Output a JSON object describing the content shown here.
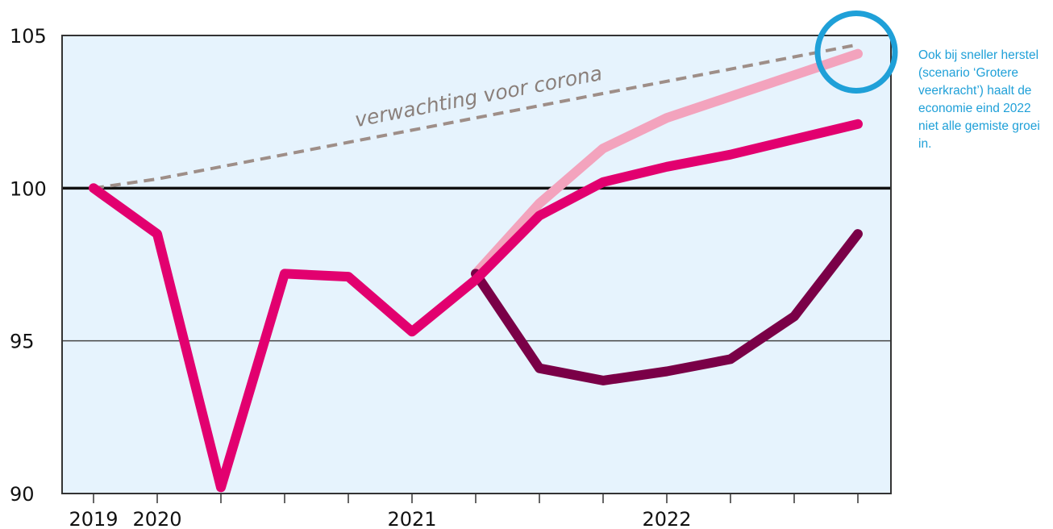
{
  "chart_data": {
    "type": "line",
    "title": "",
    "xlabel": "",
    "ylabel": "",
    "ylim": [
      90,
      105
    ],
    "yticks": [
      90,
      95,
      100,
      105
    ],
    "x_periods": [
      "2019Q4",
      "2020Q1",
      "2020Q2",
      "2020Q3",
      "2020Q4",
      "2021Q1",
      "2021Q2",
      "2021Q3",
      "2021Q4",
      "2022Q1",
      "2022Q2",
      "2022Q3",
      "2022Q4"
    ],
    "x_tick_labels": [
      {
        "period": "2019Q4",
        "label": "2019"
      },
      {
        "period": "2020Q1",
        "label": "2020"
      },
      {
        "period": "2021Q1",
        "label": "2021"
      },
      {
        "period": "2022Q1",
        "label": "2022"
      }
    ],
    "reference_line": {
      "y": 100,
      "color": "#111111"
    },
    "grid": {
      "horizontal": [
        95
      ],
      "vertical": false
    },
    "series": [
      {
        "name": "verwachting voor corona",
        "style": "dashed",
        "color": "#9e8e88",
        "values": [
          100,
          100.3,
          100.7,
          101.1,
          101.5,
          101.9,
          102.3,
          102.7,
          103.1,
          103.5,
          103.9,
          104.3,
          104.7
        ]
      },
      {
        "name": "",
        "style": "solid",
        "color": "#f3a3bd",
        "values": [
          null,
          null,
          null,
          null,
          null,
          null,
          97.2,
          99.5,
          101.3,
          102.3,
          103,
          103.7,
          104.4
        ]
      },
      {
        "name": "",
        "style": "solid",
        "color": "#7a0047",
        "values": [
          null,
          null,
          null,
          null,
          null,
          null,
          97.2,
          94.1,
          93.7,
          94,
          94.4,
          95.8,
          98.5
        ]
      },
      {
        "name": "",
        "style": "solid",
        "color": "#e2006f",
        "values": [
          100,
          98.5,
          90.2,
          97.2,
          97.1,
          95.3,
          97,
          99.1,
          100.2,
          100.7,
          101.1,
          101.6,
          102.1
        ]
      }
    ],
    "highlight": {
      "type": "circle",
      "period": "2022Q4",
      "y": 104.3,
      "color": "#1fa0d8"
    }
  },
  "callout": {
    "text": "Ook bij sneller herstel (scenario ‘Grotere veerkracht’) haalt de economie eind 2022 niet alle gemiste groei in."
  },
  "colors": {
    "plot_background": "#e6f3fd",
    "axis": "#333333"
  }
}
